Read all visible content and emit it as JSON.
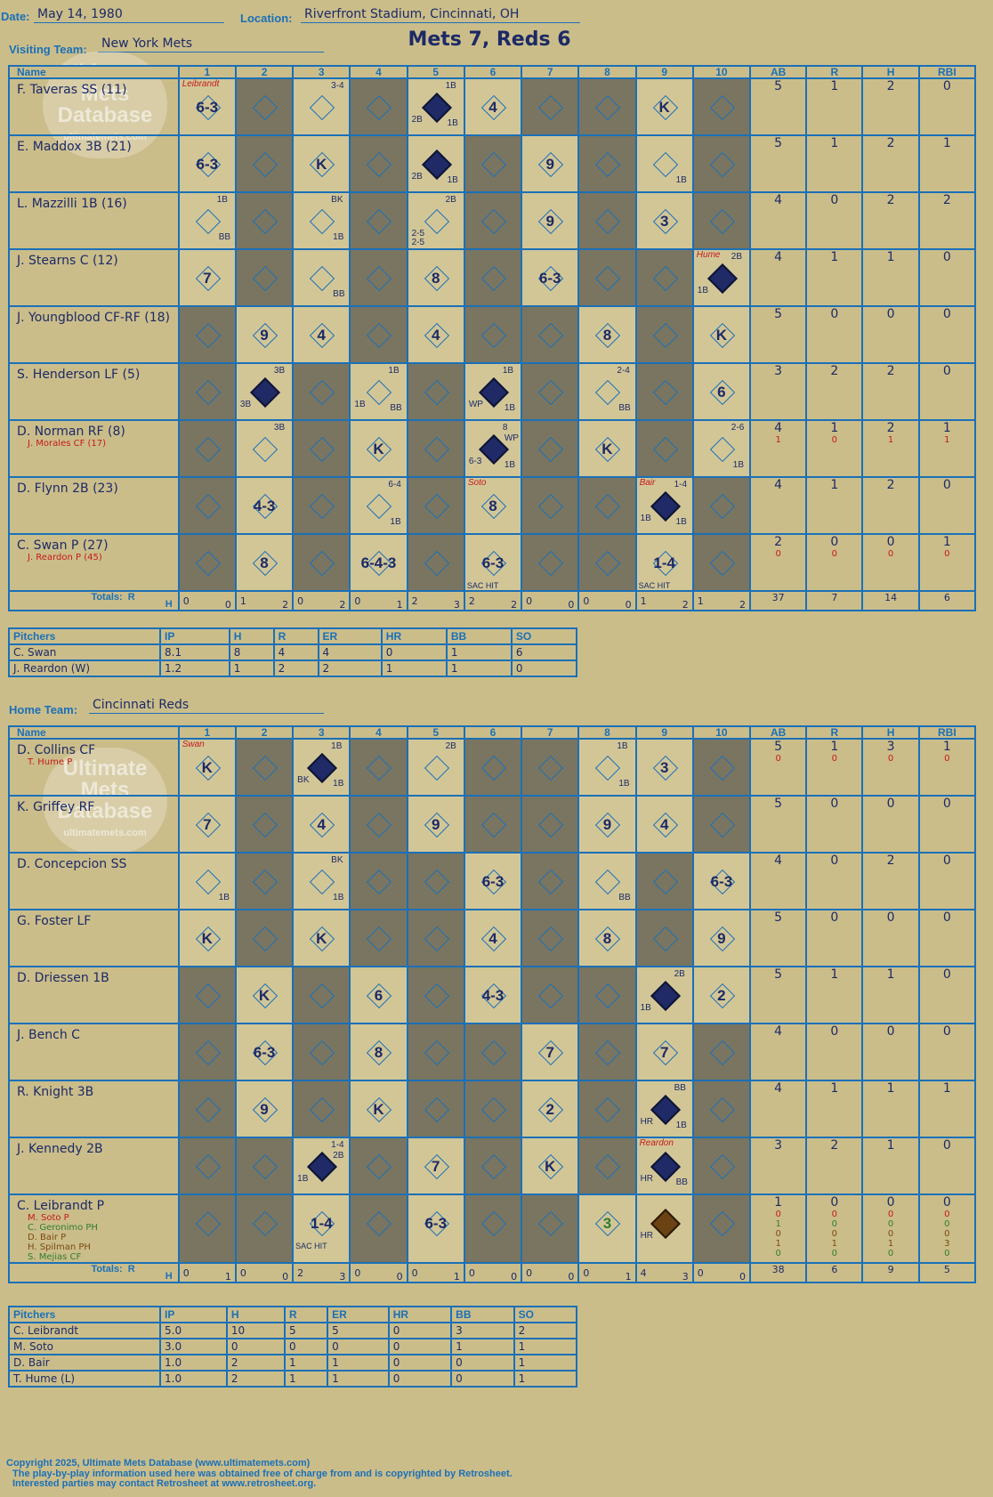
{
  "header": {
    "date_label": "Date:",
    "date": "May 14, 1980",
    "location_label": "Location:",
    "location": "Riverfront Stadium, Cincinnati, OH",
    "visiting_label": "Visiting Team:",
    "visiting_team": "New York Mets",
    "title": "Mets 7, Reds 6",
    "home_label": "Home Team:",
    "home_team": "Cincinnati Reds"
  },
  "watermark": {
    "line1": "Ultimate",
    "line2": "Mets",
    "line3": "Database",
    "url": "ultimatemets.com"
  },
  "columns": {
    "name": "Name",
    "innings": [
      "1",
      "2",
      "3",
      "4",
      "5",
      "6",
      "7",
      "8",
      "9",
      "10"
    ],
    "stats": [
      "AB",
      "R",
      "H",
      "RBI"
    ]
  },
  "totals_label": "Totals:",
  "rh_label": {
    "r": "R",
    "h": "H"
  },
  "visitors": {
    "players": [
      {
        "name": "F. Taveras SS (11)",
        "subs": [],
        "stats": [
          "5",
          "1",
          "2",
          "0"
        ],
        "sub_stats": []
      },
      {
        "name": "E. Maddox 3B (21)",
        "subs": [],
        "stats": [
          "5",
          "1",
          "2",
          "1"
        ],
        "sub_stats": []
      },
      {
        "name": "L. Mazzilli 1B (16)",
        "subs": [],
        "stats": [
          "4",
          "0",
          "2",
          "2"
        ],
        "sub_stats": []
      },
      {
        "name": "J. Stearns C (12)",
        "subs": [],
        "stats": [
          "4",
          "1",
          "1",
          "0"
        ],
        "sub_stats": []
      },
      {
        "name": "J. Youngblood CF-RF (18)",
        "subs": [],
        "stats": [
          "5",
          "0",
          "0",
          "0"
        ],
        "sub_stats": []
      },
      {
        "name": "S. Henderson LF (5)",
        "subs": [],
        "stats": [
          "3",
          "2",
          "2",
          "0"
        ],
        "sub_stats": []
      },
      {
        "name": "D. Norman RF (8)",
        "subs": [
          "J. Morales CF (17)"
        ],
        "stats": [
          "4",
          "1",
          "2",
          "1"
        ],
        "sub_stats": [
          [
            "1",
            "0",
            "1",
            "1"
          ]
        ]
      },
      {
        "name": "D. Flynn 2B (23)",
        "subs": [],
        "stats": [
          "4",
          "1",
          "2",
          "0"
        ],
        "sub_stats": []
      },
      {
        "name": "C. Swan P (27)",
        "subs": [
          "J. Reardon P (45)"
        ],
        "stats": [
          "2",
          "0",
          "0",
          "1"
        ],
        "sub_stats": [
          [
            "0",
            "0",
            "0",
            "0"
          ]
        ]
      }
    ],
    "totals": [
      [
        "0",
        "0"
      ],
      [
        "1",
        "2"
      ],
      [
        "0",
        "2"
      ],
      [
        "0",
        "1"
      ],
      [
        "2",
        "3"
      ],
      [
        "2",
        "2"
      ],
      [
        "0",
        "0"
      ],
      [
        "0",
        "0"
      ],
      [
        "1",
        "2"
      ],
      [
        "1",
        "2"
      ]
    ],
    "total_stats": [
      "37",
      "7",
      "14",
      "6"
    ],
    "pitchers": {
      "headers": [
        "Pitchers",
        "IP",
        "H",
        "R",
        "ER",
        "HR",
        "BB",
        "SO"
      ],
      "rows": [
        [
          "C. Swan",
          "8.1",
          "8",
          "4",
          "4",
          "0",
          "1",
          "6"
        ],
        [
          "J. Reardon (W)",
          "1.2",
          "1",
          "2",
          "2",
          "1",
          "1",
          "0"
        ]
      ]
    }
  },
  "home": {
    "players": [
      {
        "name": "D. Collins CF",
        "subs": [
          "T. Hume P"
        ],
        "stats": [
          "5",
          "1",
          "3",
          "1"
        ],
        "sub_stats": [
          [
            "0",
            "0",
            "0",
            "0"
          ]
        ]
      },
      {
        "name": "K. Griffey RF",
        "subs": [],
        "stats": [
          "5",
          "0",
          "0",
          "0"
        ],
        "sub_stats": []
      },
      {
        "name": "D. Concepcion SS",
        "subs": [],
        "stats": [
          "4",
          "0",
          "2",
          "0"
        ],
        "sub_stats": []
      },
      {
        "name": "G. Foster LF",
        "subs": [],
        "stats": [
          "5",
          "0",
          "0",
          "0"
        ],
        "sub_stats": []
      },
      {
        "name": "D. Driessen 1B",
        "subs": [],
        "stats": [
          "5",
          "1",
          "1",
          "0"
        ],
        "sub_stats": []
      },
      {
        "name": "J. Bench C",
        "subs": [],
        "stats": [
          "4",
          "0",
          "0",
          "0"
        ],
        "sub_stats": []
      },
      {
        "name": "R. Knight 3B",
        "subs": [],
        "stats": [
          "4",
          "1",
          "1",
          "1"
        ],
        "sub_stats": []
      },
      {
        "name": "J. Kennedy 2B",
        "subs": [],
        "stats": [
          "3",
          "2",
          "1",
          "0"
        ],
        "sub_stats": []
      },
      {
        "name": "C. Leibrandt P",
        "subs": [
          "M. Soto P",
          "C. Geronimo PH",
          "D. Bair P",
          "H. Spilman PH",
          "S. Mejias CF"
        ],
        "stats": [
          "1",
          "0",
          "0",
          "0"
        ],
        "sub_stats": [
          [
            "0",
            "0",
            "0",
            "0"
          ],
          [
            "1",
            "0",
            "0",
            "0"
          ],
          [
            "0",
            "0",
            "0",
            "0"
          ],
          [
            "1",
            "1",
            "1",
            "3"
          ],
          [
            "0",
            "0",
            "0",
            "0"
          ]
        ]
      }
    ],
    "totals": [
      [
        "0",
        "1"
      ],
      [
        "0",
        "0"
      ],
      [
        "2",
        "3"
      ],
      [
        "0",
        "0"
      ],
      [
        "0",
        "1"
      ],
      [
        "0",
        "0"
      ],
      [
        "0",
        "0"
      ],
      [
        "0",
        "1"
      ],
      [
        "4",
        "3"
      ],
      [
        "0",
        "0"
      ]
    ],
    "total_stats": [
      "38",
      "6",
      "9",
      "5"
    ],
    "pitchers": {
      "headers": [
        "Pitchers",
        "IP",
        "H",
        "R",
        "ER",
        "HR",
        "BB",
        "SO"
      ],
      "rows": [
        [
          "C. Leibrandt",
          "5.0",
          "10",
          "5",
          "5",
          "0",
          "3",
          "2"
        ],
        [
          "M. Soto",
          "3.0",
          "0",
          "0",
          "0",
          "0",
          "1",
          "1"
        ],
        [
          "D. Bair",
          "1.0",
          "2",
          "1",
          "1",
          "0",
          "0",
          "1"
        ],
        [
          "T. Hume (L)",
          "1.0",
          "2",
          "1",
          "1",
          "0",
          "0",
          "1"
        ]
      ]
    }
  },
  "footer": {
    "line1": "Copyright 2025, Ultimate Mets Database (www.ultimatemets.com)",
    "line2": "The play-by-play information used here was obtained free of charge from and is copyrighted by Retrosheet.",
    "line3": "Interested parties may contact Retrosheet at www.retrosheet.org."
  },
  "plays_visitors": [
    [
      {
        "c": "6-3",
        "p": "Leibrandt"
      },
      null,
      {
        "a": "3-4"
      },
      null,
      {
        "s": 1,
        "a": "1B",
        "b": "2B",
        "d": "1B"
      },
      {
        "c": "4"
      },
      null,
      null,
      {
        "c": "K"
      },
      null
    ],
    [
      {
        "c": "6-3"
      },
      null,
      {
        "c": "K"
      },
      null,
      {
        "s": 1,
        "b": "2B",
        "d": "1B"
      },
      null,
      {
        "c": "9"
      },
      null,
      {
        "d": "1B"
      },
      null
    ],
    [
      {
        "a": "1B",
        "d": "BB"
      },
      null,
      {
        "a": "BK",
        "d": "1B"
      },
      null,
      {
        "a": "2B",
        "b": "2-5",
        "e": "2-5"
      },
      null,
      {
        "c": "9"
      },
      null,
      {
        "c": "3"
      },
      null
    ],
    [
      {
        "c": "7"
      },
      null,
      {
        "d": "BB"
      },
      null,
      {
        "c": "8"
      },
      null,
      {
        "c": "6-3"
      },
      null,
      null,
      {
        "s": 1,
        "a": "2B",
        "b": "1B",
        "p": "Hume"
      }
    ],
    [
      null,
      {
        "c": "9"
      },
      {
        "c": "4"
      },
      null,
      {
        "c": "4"
      },
      null,
      null,
      {
        "c": "8"
      },
      null,
      {
        "c": "K"
      }
    ],
    [
      null,
      {
        "s": 1,
        "a": "3B",
        "b": "3B"
      },
      null,
      {
        "a": "1B",
        "b": "1B",
        "d": "BB"
      },
      null,
      {
        "s": 1,
        "a": "1B",
        "b": "WP",
        "d": "1B"
      },
      null,
      {
        "a": "2-4",
        "d": "BB"
      },
      null,
      {
        "c": "6"
      }
    ],
    [
      null,
      {
        "a": "3B"
      },
      null,
      {
        "c": "K"
      },
      null,
      {
        "s": 1,
        "a": "8",
        "x": "WP",
        "b": "6-3",
        "d": "1B"
      },
      null,
      {
        "c": "K"
      },
      null,
      {
        "a": "2-6",
        "d": "1B"
      }
    ],
    [
      null,
      {
        "c": "4-3"
      },
      null,
      {
        "a": "6-4",
        "d": "1B"
      },
      null,
      {
        "c": "8",
        "p": "Soto"
      },
      null,
      null,
      {
        "s": 1,
        "a": "1-4",
        "b": "1B",
        "d": "1B",
        "p": "Bair"
      },
      null
    ],
    [
      null,
      {
        "c": "8"
      },
      null,
      {
        "c": "6-4-3"
      },
      null,
      {
        "c": "6-3",
        "f": "SAC HIT"
      },
      null,
      null,
      {
        "c": "1-4",
        "f": "SAC HIT"
      },
      null
    ]
  ],
  "plays_home": [
    [
      {
        "c": "K",
        "p": "Swan"
      },
      null,
      {
        "s": 1,
        "a": "1B",
        "b": "BK",
        "d": "1B"
      },
      null,
      {
        "a": "2B"
      },
      null,
      null,
      {
        "a": "1B",
        "d": "1B"
      },
      {
        "c": "3"
      },
      null
    ],
    [
      {
        "c": "7"
      },
      null,
      {
        "c": "4"
      },
      null,
      {
        "c": "9"
      },
      null,
      null,
      {
        "c": "9"
      },
      {
        "c": "4"
      },
      null
    ],
    [
      {
        "d": "1B"
      },
      null,
      {
        "a": "BK",
        "d": "1B"
      },
      null,
      null,
      {
        "c": "6-3"
      },
      null,
      {
        "d": "BB"
      },
      null,
      {
        "c": "6-3"
      }
    ],
    [
      {
        "c": "K"
      },
      null,
      {
        "c": "K"
      },
      null,
      null,
      {
        "c": "4"
      },
      null,
      {
        "c": "8"
      },
      null,
      {
        "c": "9"
      }
    ],
    [
      null,
      {
        "c": "K"
      },
      null,
      {
        "c": "6"
      },
      null,
      {
        "c": "4-3"
      },
      null,
      null,
      {
        "s": 1,
        "a": "2B",
        "b": "1B"
      },
      {
        "c": "2"
      }
    ],
    [
      null,
      {
        "c": "6-3"
      },
      null,
      {
        "c": "8"
      },
      null,
      null,
      {
        "c": "7"
      },
      null,
      {
        "c": "7"
      },
      null
    ],
    [
      null,
      {
        "c": "9"
      },
      null,
      {
        "c": "K"
      },
      null,
      null,
      {
        "c": "2"
      },
      null,
      {
        "s": 1,
        "a": "BB",
        "b": "HR",
        "d": "1B"
      },
      null
    ],
    [
      null,
      null,
      {
        "s": 1,
        "a": "1-4",
        "x": "2B",
        "b": "1B"
      },
      null,
      {
        "c": "7"
      },
      null,
      {
        "c": "K"
      },
      null,
      {
        "s": 1,
        "b": "HR",
        "d": "BB",
        "p": "Reardon"
      },
      null
    ],
    [
      null,
      null,
      {
        "c": "1-4",
        "f": "SAC HIT"
      },
      null,
      {
        "c": "6-3"
      },
      null,
      null,
      {
        "c": "3",
        "g": 1
      },
      {
        "h": 1,
        "b": "HR"
      },
      null
    ]
  ]
}
